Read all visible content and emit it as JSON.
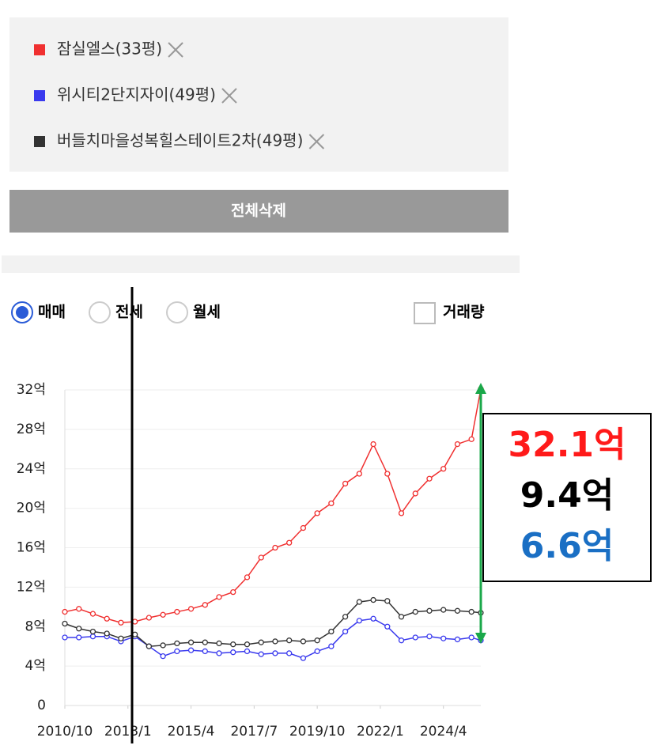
{
  "filters": {
    "button": "전체삭제",
    "radios": [
      "매매",
      "전세",
      "월세"
    ],
    "checkbox": "거래량"
  },
  "chart_data": {
    "type": "line",
    "x": [
      "2010/10",
      "2011/4",
      "2011/10",
      "2012/4",
      "2012/10",
      "2013/4",
      "2013/10",
      "2014/4",
      "2014/10",
      "2015/4",
      "2015/10",
      "2016/4",
      "2016/10",
      "2017/4",
      "2017/10",
      "2018/4",
      "2018/10",
      "2019/4",
      "2019/10",
      "2020/4",
      "2020/10",
      "2021/4",
      "2021/10",
      "2022/4",
      "2022/10",
      "2023/4",
      "2023/10",
      "2024/4",
      "2024/10",
      "2025/4",
      "2025/8"
    ],
    "series": [
      {
        "name": "잠실엘스(33평)",
        "color": "#f03030",
        "values": [
          9.5,
          9.8,
          9.3,
          8.8,
          8.4,
          8.5,
          8.9,
          9.2,
          9.5,
          9.8,
          10.2,
          11,
          11.5,
          13,
          15,
          16,
          16.5,
          18,
          19.5,
          20.5,
          22.5,
          23.5,
          26.5,
          23.5,
          19.5,
          21.5,
          23,
          24,
          26.5,
          27,
          32.1
        ]
      },
      {
        "name": "위시티2단지자이(49평)",
        "color": "#3a3aee",
        "values": [
          6.9,
          6.9,
          7.0,
          7.0,
          6.5,
          7.0,
          6.0,
          5.0,
          5.5,
          5.6,
          5.5,
          5.3,
          5.4,
          5.5,
          5.2,
          5.3,
          5.3,
          4.8,
          5.5,
          6.0,
          7.5,
          8.6,
          8.8,
          8.0,
          6.6,
          6.9,
          7.0,
          6.8,
          6.7,
          6.9,
          6.6
        ]
      },
      {
        "name": "버들치마을성복힐스테이트2차(49평)",
        "color": "#333333",
        "values": [
          8.3,
          7.8,
          7.5,
          7.3,
          6.8,
          7.2,
          6.0,
          6.1,
          6.3,
          6.4,
          6.4,
          6.3,
          6.2,
          6.2,
          6.4,
          6.5,
          6.6,
          6.5,
          6.6,
          7.5,
          9.0,
          10.5,
          10.7,
          10.6,
          9.0,
          9.5,
          9.6,
          9.7,
          9.6,
          9.5,
          9.4
        ]
      }
    ],
    "xlim": [
      "2010/10",
      "2025/8"
    ],
    "xticks": [
      "2010/10",
      "2013/1",
      "2015/4",
      "2017/7",
      "2019/10",
      "2022/1",
      "2024/4"
    ],
    "ylim": [
      0,
      32
    ],
    "yticks": [
      0,
      {
        "value": 4,
        "label": "4억"
      },
      {
        "value": 8,
        "label": "8억"
      },
      {
        "value": 12,
        "label": "12억"
      },
      {
        "value": 16,
        "label": "16억"
      },
      {
        "value": 20,
        "label": "20억"
      },
      {
        "value": 24,
        "label": "24억"
      },
      {
        "value": 28,
        "label": "28억"
      },
      {
        "value": 32,
        "label": "32억"
      }
    ],
    "grid": true,
    "annotations": [
      {
        "text": "32.1억",
        "color": "#ff1a1a"
      },
      {
        "text": "9.4억",
        "color": "#000000"
      },
      {
        "text": "6.6억",
        "color": "#1a6fc4"
      }
    ]
  }
}
